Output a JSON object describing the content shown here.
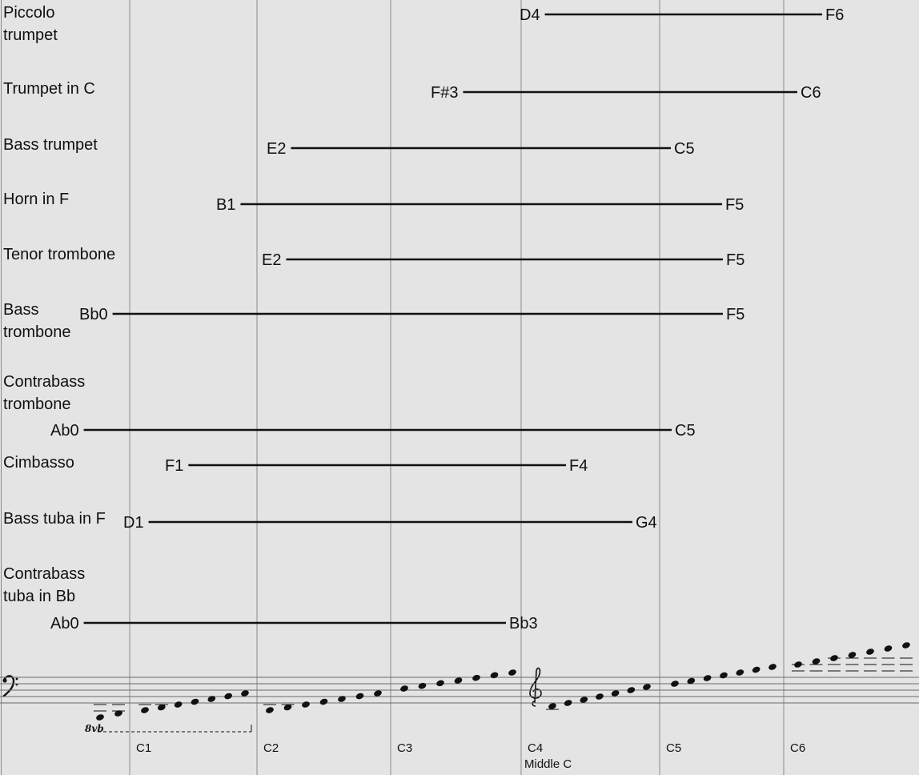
{
  "chart_data": {
    "type": "range",
    "title": "",
    "grid": true,
    "octave_labels": [
      "C1",
      "C2",
      "C3",
      "C4",
      "C5",
      "C6"
    ],
    "middle_c_label": "Middle C",
    "ottava_label": "8vb",
    "instruments": [
      {
        "name_lines": [
          "Piccolo",
          "trumpet"
        ],
        "low": "D4",
        "high": "F6",
        "low_pos": 36.1,
        "high_pos": 53.0
      },
      {
        "name_lines": [
          "Trumpet in C"
        ],
        "low": "F#3",
        "high": "C6",
        "low_pos": 30.8,
        "high_pos": 48.0
      },
      {
        "name_lines": [
          "Bass trumpet"
        ],
        "low": "E2",
        "high": "C5",
        "low_pos": 21.9,
        "high_pos": 40.9
      },
      {
        "name_lines": [
          "Horn in F"
        ],
        "low": "B1",
        "high": "F5",
        "low_pos": 19.3,
        "high_pos": 44.6
      },
      {
        "name_lines": [
          "Tenor trombone"
        ],
        "low": "E2",
        "high": "F5",
        "low_pos": 21.7,
        "high_pos": 44.6
      },
      {
        "name_lines": [
          "Bass",
          "trombone"
        ],
        "low": "Bb0",
        "high": "F5",
        "low_pos": 12.9,
        "high_pos": 44.6
      },
      {
        "name_lines": [
          "Contrabass",
          "trombone"
        ],
        "low": "Ab0",
        "high": "C5",
        "low_pos": 11.8,
        "high_pos": 41.0
      },
      {
        "name_lines": [
          "Cimbasso"
        ],
        "low": "F1",
        "high": "F4",
        "low_pos": 16.6,
        "high_pos": 37.8
      },
      {
        "name_lines": [
          "Bass tuba in F"
        ],
        "low": "D1",
        "high": "G4",
        "low_pos": 14.8,
        "high_pos": 38.7
      },
      {
        "name_lines": [
          "Contrabass",
          "tuba in Bb"
        ],
        "low": "Ab0",
        "high": "Bb3",
        "low_pos": 11.8,
        "high_pos": 35.5
      }
    ]
  }
}
